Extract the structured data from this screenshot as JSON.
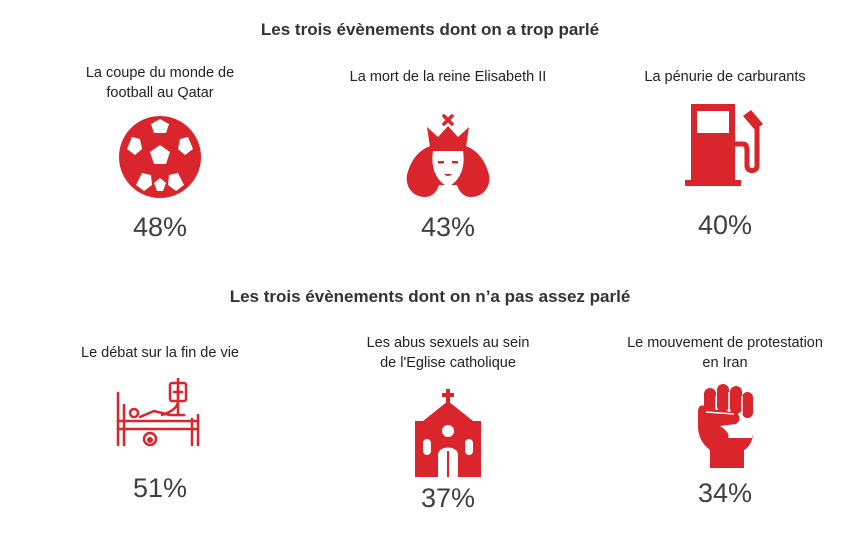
{
  "accent_color": "#d9252b",
  "sections": [
    {
      "title": "Les trois évènements dont on a trop parlé",
      "items": [
        {
          "label_lines": [
            "La coupe du monde de",
            "football au Qatar"
          ],
          "percent": "48%",
          "icon": "soccer-ball-icon"
        },
        {
          "label_lines": [
            "La mort de la reine Elisabeth II"
          ],
          "percent": "43%",
          "icon": "queen-icon"
        },
        {
          "label_lines": [
            "La pénurie de carburants"
          ],
          "percent": "40%",
          "icon": "fuel-pump-icon"
        }
      ]
    },
    {
      "title": "Les trois évènements dont on n’a pas assez parlé",
      "items": [
        {
          "label_lines": [
            "Le débat sur la fin de vie"
          ],
          "percent": "51%",
          "icon": "hospital-bed-icon"
        },
        {
          "label_lines": [
            "Les abus sexuels au sein",
            "de l'Eglise catholique"
          ],
          "percent": "37%",
          "icon": "church-icon"
        },
        {
          "label_lines": [
            "Le mouvement de protestation",
            "en Iran"
          ],
          "percent": "34%",
          "icon": "raised-fist-icon"
        }
      ]
    }
  ]
}
